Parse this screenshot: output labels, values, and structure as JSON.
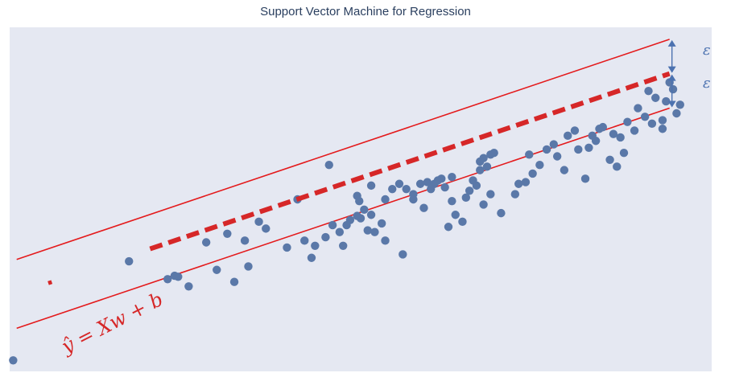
{
  "title": "Support Vector Machine for Regression",
  "annotations": {
    "epsilon_upper": "ε",
    "epsilon_lower": "ε",
    "equation": "ŷ = Xw + b"
  },
  "colors": {
    "plot_background": "#e5e8f2",
    "points": "#5a78a8",
    "regression_line": "#d62728",
    "margin_lines": "#e41a1c",
    "epsilon_arrows": "#4c72b0"
  },
  "chart_data": {
    "type": "scatter",
    "title": "Support Vector Machine for Regression",
    "xlabel": "",
    "ylabel": "",
    "grid": false,
    "axes_visible": false,
    "xlim": [
      0,
      10
    ],
    "ylim": [
      0,
      10
    ],
    "regression": {
      "slope": 0.688,
      "intercept": 2.185,
      "style": "dashed",
      "x_start": 2.0,
      "x_end": 9.4
    },
    "epsilon": 1.0,
    "margin_lines": {
      "x_start": 0.1,
      "x_end": 9.4
    },
    "points": [
      [
        0.05,
        0.32
      ],
      [
        1.7,
        3.2
      ],
      [
        2.25,
        2.68
      ],
      [
        2.4,
        2.75
      ],
      [
        2.55,
        2.47
      ],
      [
        2.35,
        2.78
      ],
      [
        2.8,
        3.75
      ],
      [
        2.95,
        2.95
      ],
      [
        3.1,
        4.0
      ],
      [
        3.35,
        3.8
      ],
      [
        3.2,
        2.6
      ],
      [
        3.4,
        3.05
      ],
      [
        3.55,
        4.35
      ],
      [
        3.65,
        4.15
      ],
      [
        3.95,
        3.6
      ],
      [
        4.1,
        5.0
      ],
      [
        4.3,
        3.3
      ],
      [
        4.35,
        3.65
      ],
      [
        4.55,
        6.0
      ],
      [
        4.2,
        3.8
      ],
      [
        4.5,
        3.9
      ],
      [
        4.7,
        4.05
      ],
      [
        4.75,
        3.65
      ],
      [
        4.6,
        4.25
      ],
      [
        4.85,
        4.4
      ],
      [
        4.95,
        4.52
      ],
      [
        4.98,
        4.95
      ],
      [
        5.15,
        4.55
      ],
      [
        5.05,
        4.7
      ],
      [
        5.3,
        4.3
      ],
      [
        5.35,
        3.8
      ],
      [
        5.2,
        4.05
      ],
      [
        5.1,
        4.1
      ],
      [
        5.0,
        4.45
      ],
      [
        4.8,
        4.25
      ],
      [
        4.95,
        5.1
      ],
      [
        5.15,
        5.4
      ],
      [
        5.35,
        5.0
      ],
      [
        5.45,
        5.3
      ],
      [
        5.55,
        5.45
      ],
      [
        5.6,
        3.4
      ],
      [
        5.75,
        5.0
      ],
      [
        5.65,
        5.3
      ],
      [
        5.85,
        5.45
      ],
      [
        5.75,
        5.15
      ],
      [
        5.95,
        5.5
      ],
      [
        5.9,
        4.75
      ],
      [
        6.05,
        5.45
      ],
      [
        6.15,
        5.6
      ],
      [
        6.2,
        5.35
      ],
      [
        6.3,
        5.65
      ],
      [
        6.0,
        5.3
      ],
      [
        6.1,
        5.55
      ],
      [
        6.3,
        4.95
      ],
      [
        6.35,
        4.55
      ],
      [
        6.25,
        4.2
      ],
      [
        6.45,
        4.35
      ],
      [
        6.55,
        5.25
      ],
      [
        6.65,
        5.4
      ],
      [
        6.75,
        4.85
      ],
      [
        6.5,
        5.05
      ],
      [
        6.6,
        5.55
      ],
      [
        6.85,
        5.15
      ],
      [
        6.7,
        5.85
      ],
      [
        6.75,
        6.2
      ],
      [
        6.85,
        6.3
      ],
      [
        6.7,
        6.1
      ],
      [
        6.8,
        5.95
      ],
      [
        6.9,
        6.35
      ],
      [
        7.2,
        5.15
      ],
      [
        7.0,
        4.6
      ],
      [
        7.25,
        5.45
      ],
      [
        7.45,
        5.75
      ],
      [
        7.35,
        5.5
      ],
      [
        7.55,
        6.0
      ],
      [
        7.4,
        6.3
      ],
      [
        7.65,
        6.45
      ],
      [
        7.75,
        6.6
      ],
      [
        7.8,
        6.25
      ],
      [
        7.95,
        6.85
      ],
      [
        8.05,
        7.0
      ],
      [
        8.1,
        6.45
      ],
      [
        7.9,
        5.85
      ],
      [
        8.2,
        5.6
      ],
      [
        8.3,
        6.85
      ],
      [
        8.4,
        7.05
      ],
      [
        8.45,
        7.1
      ],
      [
        8.6,
        6.9
      ],
      [
        8.35,
        6.7
      ],
      [
        8.25,
        6.5
      ],
      [
        8.55,
        6.15
      ],
      [
        8.65,
        5.95
      ],
      [
        8.75,
        6.35
      ],
      [
        8.95,
        7.65
      ],
      [
        8.8,
        7.25
      ],
      [
        8.7,
        6.8
      ],
      [
        9.1,
        8.15
      ],
      [
        9.05,
        7.4
      ],
      [
        9.15,
        7.2
      ],
      [
        9.2,
        7.95
      ],
      [
        9.4,
        8.4
      ],
      [
        9.35,
        7.85
      ],
      [
        9.3,
        7.3
      ],
      [
        9.45,
        8.2
      ],
      [
        9.3,
        7.05
      ],
      [
        8.9,
        7.0
      ],
      [
        9.55,
        7.75
      ],
      [
        9.5,
        7.5
      ]
    ]
  }
}
